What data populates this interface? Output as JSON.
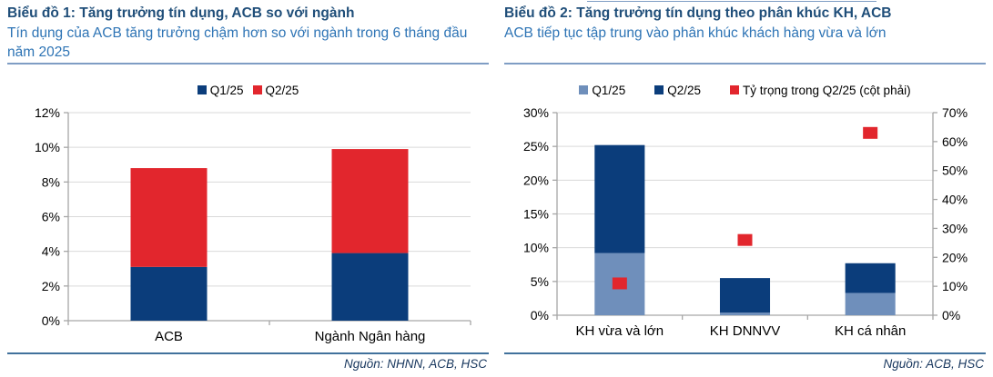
{
  "panels": [
    {
      "title": "Biểu đồ 1: Tăng trưởng tín dụng, ACB so với ngành",
      "subtitle": "Tín dụng của ACB tăng trưởng chậm hơn so với ngành trong 6 tháng đầu năm 2025",
      "source": "Nguồn: NHNN, ACB, HSC"
    },
    {
      "title": "Biểu đồ 2: Tăng trưởng tín dụng theo phân khúc KH, ACB",
      "subtitle": "ACB tiếp tục tập trung vào phân khúc khách hàng vừa và lớn",
      "source": "Nguồn: ACB, HSC"
    }
  ],
  "colors": {
    "title": "#1F4E79",
    "subtitle": "#2E74B5",
    "rule": "#7F9DC4",
    "source_rule": "#41719C",
    "source_text": "#17365D",
    "text": "#000000",
    "grid": "#D9D9D9",
    "axis": "#A6A6A6",
    "navy": "#0B3D7B",
    "light_blue": "#6F8FBB",
    "red": "#E2262D"
  },
  "chart_data": [
    {
      "type": "bar",
      "stacked": true,
      "title": "Tăng trưởng tín dụng, ACB so với ngành",
      "categories": [
        "ACB",
        "Ngành Ngân hàng"
      ],
      "series": [
        {
          "name": "Q1/25",
          "color": "#0B3D7B",
          "values": [
            3.1,
            3.9
          ]
        },
        {
          "name": "Q2/25",
          "color": "#E2262D",
          "values": [
            5.7,
            6.0
          ]
        }
      ],
      "stack_totals": [
        8.8,
        9.9
      ],
      "xlabel": "",
      "ylabel": "",
      "ylim": [
        0,
        12
      ],
      "ytick_step": 2,
      "ytick_format": "percent",
      "grid": true,
      "legend_position": "top"
    },
    {
      "type": "bar",
      "stacked": true,
      "title": "Tăng trưởng tín dụng theo phân khúc KH, ACB",
      "categories": [
        "KH vừa và lớn",
        "KH DNNVV",
        "KH cá nhân"
      ],
      "series": [
        {
          "name": "Q1/25",
          "color": "#6F8FBB",
          "values": [
            9.2,
            0.4,
            3.3
          ]
        },
        {
          "name": "Q2/25",
          "color": "#0B3D7B",
          "values": [
            16.0,
            5.1,
            4.4
          ]
        }
      ],
      "stack_totals": [
        25.2,
        5.5,
        7.7
      ],
      "markers": {
        "name": "Tỷ trọng trong Q2/25 (cột phải)",
        "color": "#E2262D",
        "axis": "right",
        "values": [
          11,
          26,
          63
        ]
      },
      "xlabel": "",
      "ylabel": "",
      "ylim": [
        0,
        30
      ],
      "ytick_step": 5,
      "ylim_right": [
        0,
        70
      ],
      "ytick_step_right": 10,
      "ytick_format": "percent",
      "grid": true,
      "legend_position": "top"
    }
  ]
}
